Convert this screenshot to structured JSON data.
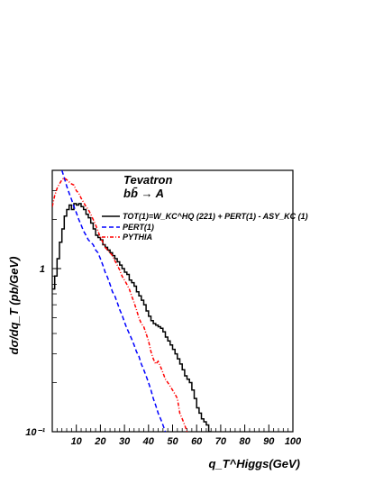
{
  "chart_data": {
    "type": "line",
    "title": "Tevatron",
    "subtitle": "bb̄ → A",
    "xlabel": "q_T^Higgs(GeV)",
    "ylabel": "dσ/dq_T (pb/GeV)",
    "xlim": [
      0,
      100
    ],
    "ylim": [
      0.1,
      4
    ],
    "yscale": "log",
    "x_ticks": [
      10,
      20,
      30,
      40,
      50,
      60,
      70,
      80,
      90,
      100
    ],
    "y_tick_labels": [
      "10⁻¹",
      "1"
    ],
    "legend_position": "top-right",
    "series": [
      {
        "name": "TOT(1)=W_KC^HQ (221) + PERT(1) - ASY_KC (1)",
        "color": "#000000",
        "style": "solid-step",
        "x": [
          0,
          1,
          2,
          3,
          4,
          5,
          6,
          7,
          8,
          9,
          10,
          11,
          12,
          13,
          14,
          15,
          16,
          17,
          18,
          19,
          20,
          21,
          22,
          23,
          24,
          25,
          26,
          27,
          28,
          29,
          30,
          31,
          32,
          33,
          34,
          35,
          36,
          37,
          38,
          39,
          40,
          41,
          42,
          43,
          44,
          45,
          46,
          47,
          48,
          49,
          50,
          51,
          52,
          53,
          54,
          55,
          56,
          57,
          58,
          59,
          60,
          61,
          62,
          63,
          64,
          65
        ],
        "y": [
          0.75,
          0.9,
          1.15,
          1.45,
          1.75,
          2.1,
          2.3,
          2.45,
          2.3,
          2.5,
          2.45,
          2.5,
          2.4,
          2.3,
          2.15,
          2.05,
          1.9,
          1.75,
          1.6,
          1.55,
          1.5,
          1.4,
          1.35,
          1.3,
          1.25,
          1.2,
          1.15,
          1.1,
          1.05,
          1.0,
          0.95,
          0.92,
          0.85,
          0.82,
          0.78,
          0.72,
          0.68,
          0.64,
          0.6,
          0.55,
          0.51,
          0.48,
          0.46,
          0.45,
          0.44,
          0.43,
          0.41,
          0.38,
          0.36,
          0.34,
          0.32,
          0.3,
          0.28,
          0.26,
          0.24,
          0.22,
          0.21,
          0.2,
          0.18,
          0.16,
          0.14,
          0.13,
          0.12,
          0.115,
          0.11,
          0.1
        ]
      },
      {
        "name": "PERT(1)",
        "color": "#0000ff",
        "style": "dashed",
        "x": [
          4,
          5,
          6,
          7,
          8,
          9,
          10,
          11,
          12,
          13,
          14,
          15,
          16,
          17,
          18,
          19,
          20,
          21,
          22,
          23,
          24,
          25,
          26,
          27,
          28,
          29,
          30,
          31,
          32,
          33,
          34,
          35,
          36,
          37,
          38,
          39,
          40,
          41,
          42,
          43,
          44,
          45,
          46,
          47
        ],
        "y": [
          4.0,
          3.6,
          3.2,
          2.9,
          2.65,
          2.4,
          2.2,
          2.0,
          1.85,
          1.7,
          1.6,
          1.5,
          1.45,
          1.4,
          1.3,
          1.25,
          1.15,
          1.05,
          0.95,
          0.88,
          0.8,
          0.72,
          0.68,
          0.62,
          0.56,
          0.52,
          0.47,
          0.43,
          0.4,
          0.37,
          0.34,
          0.31,
          0.29,
          0.26,
          0.24,
          0.22,
          0.2,
          0.18,
          0.16,
          0.145,
          0.13,
          0.12,
          0.11,
          0.1
        ]
      },
      {
        "name": "PYTHIA",
        "color": "#ff0000",
        "style": "dash-dot",
        "x": [
          0,
          1,
          2,
          3,
          4,
          5,
          6,
          7,
          8,
          9,
          10,
          11,
          12,
          13,
          14,
          15,
          16,
          17,
          18,
          19,
          20,
          21,
          22,
          23,
          24,
          25,
          26,
          27,
          28,
          29,
          30,
          31,
          32,
          33,
          34,
          35,
          36,
          37,
          38,
          39,
          40,
          41,
          42,
          43,
          44,
          45,
          46,
          47,
          48,
          49,
          50,
          51,
          52,
          53,
          54,
          55,
          56
        ],
        "y": [
          2.4,
          2.8,
          3.1,
          3.3,
          3.5,
          3.6,
          3.5,
          3.4,
          3.3,
          3.25,
          3.0,
          2.9,
          2.7,
          2.55,
          2.4,
          2.3,
          2.15,
          2.0,
          1.85,
          1.7,
          1.55,
          1.45,
          1.35,
          1.3,
          1.25,
          1.2,
          1.12,
          1.05,
          0.98,
          0.9,
          0.85,
          0.8,
          0.75,
          0.68,
          0.62,
          0.56,
          0.5,
          0.46,
          0.44,
          0.4,
          0.36,
          0.31,
          0.28,
          0.26,
          0.27,
          0.25,
          0.23,
          0.21,
          0.2,
          0.19,
          0.18,
          0.17,
          0.16,
          0.13,
          0.12,
          0.11,
          0.1
        ]
      }
    ]
  }
}
